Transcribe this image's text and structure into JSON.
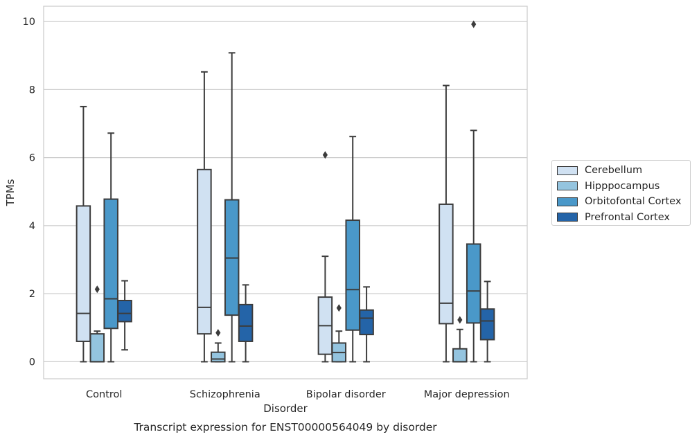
{
  "chart_data": {
    "type": "box",
    "xlabel": "Disorder",
    "ylabel": "TPMs",
    "caption": "Transcript expression for ENST00000564049 by disorder",
    "ylim": [
      -0.5,
      10.45
    ],
    "yticks": [
      "0",
      "2",
      "4",
      "6",
      "8",
      "10"
    ],
    "grid": "horizontal",
    "legend_position": "right",
    "categories": [
      "Control",
      "Schizophrenia",
      "Bipolar disorder",
      "Major depression"
    ],
    "series": [
      {
        "name": "Cerebellum",
        "color": "#d0e1f2",
        "boxes": [
          {
            "whisker_low": 0,
            "q1": 0.6,
            "median": 1.42,
            "q3": 4.58,
            "whisker_high": 7.5,
            "outliers": []
          },
          {
            "whisker_low": 0,
            "q1": 0.82,
            "median": 1.6,
            "q3": 5.65,
            "whisker_high": 8.52,
            "outliers": []
          },
          {
            "whisker_low": 0,
            "q1": 0.22,
            "median": 1.06,
            "q3": 1.9,
            "whisker_high": 3.1,
            "outliers": [
              6.08
            ]
          },
          {
            "whisker_low": 0,
            "q1": 1.12,
            "median": 1.72,
            "q3": 4.63,
            "whisker_high": 8.12,
            "outliers": []
          }
        ]
      },
      {
        "name": "Hipppocampus",
        "color": "#94c4df",
        "boxes": [
          {
            "whisker_low": 0,
            "q1": 0,
            "median": 0,
            "q3": 0.82,
            "whisker_high": 0.9,
            "outliers": [
              2.13
            ]
          },
          {
            "whisker_low": 0,
            "q1": 0,
            "median": 0.08,
            "q3": 0.28,
            "whisker_high": 0.55,
            "outliers": [
              0.85
            ]
          },
          {
            "whisker_low": 0,
            "q1": 0,
            "median": 0.27,
            "q3": 0.55,
            "whisker_high": 0.9,
            "outliers": [
              1.58
            ]
          },
          {
            "whisker_low": 0,
            "q1": 0,
            "median": 0,
            "q3": 0.38,
            "whisker_high": 0.95,
            "outliers": [
              1.23
            ]
          }
        ]
      },
      {
        "name": "Orbitofontal Cortex",
        "color": "#4a98c9",
        "boxes": [
          {
            "whisker_low": 0,
            "q1": 0.98,
            "median": 1.85,
            "q3": 4.78,
            "whisker_high": 6.72,
            "outliers": []
          },
          {
            "whisker_low": 0,
            "q1": 1.37,
            "median": 3.05,
            "q3": 4.76,
            "whisker_high": 9.08,
            "outliers": []
          },
          {
            "whisker_low": 0,
            "q1": 0.93,
            "median": 2.12,
            "q3": 4.16,
            "whisker_high": 6.62,
            "outliers": []
          },
          {
            "whisker_low": 0,
            "q1": 1.14,
            "median": 2.08,
            "q3": 3.46,
            "whisker_high": 6.8,
            "outliers": [
              9.92
            ]
          }
        ]
      },
      {
        "name": "Prefrontal Cortex",
        "color": "#2464a8",
        "boxes": [
          {
            "whisker_low": 0.35,
            "q1": 1.18,
            "median": 1.42,
            "q3": 1.8,
            "whisker_high": 2.38,
            "outliers": []
          },
          {
            "whisker_low": 0,
            "q1": 0.6,
            "median": 1.05,
            "q3": 1.68,
            "whisker_high": 2.26,
            "outliers": []
          },
          {
            "whisker_low": 0,
            "q1": 0.8,
            "median": 1.28,
            "q3": 1.52,
            "whisker_high": 2.2,
            "outliers": []
          },
          {
            "whisker_low": 0,
            "q1": 0.65,
            "median": 1.2,
            "q3": 1.55,
            "whisker_high": 2.36,
            "outliers": []
          }
        ]
      }
    ]
  }
}
